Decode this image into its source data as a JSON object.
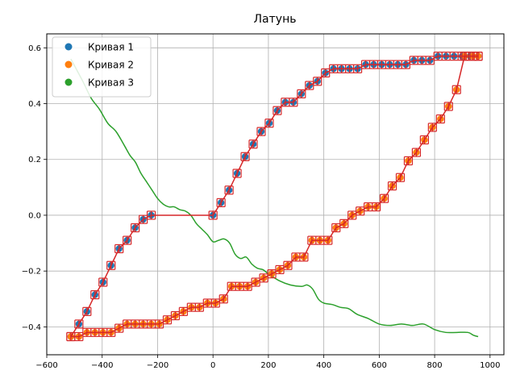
{
  "chart_data": {
    "type": "scatter",
    "title": "Латунь",
    "xlabel": "",
    "ylabel": "",
    "xlim": [
      -600,
      1050
    ],
    "ylim": [
      -0.5,
      0.65
    ],
    "xticks": [
      -600,
      -400,
      -200,
      0,
      200,
      400,
      600,
      800,
      1000
    ],
    "yticks": [
      -0.4,
      -0.2,
      0.0,
      0.2,
      0.4,
      0.6
    ],
    "xtick_labels": [
      "−600",
      "−400",
      "−200",
      "0",
      "200",
      "400",
      "600",
      "800",
      "1000"
    ],
    "ytick_labels": [
      "−0.4",
      "−0.2",
      "0.0",
      "0.2",
      "0.4",
      "0.6"
    ],
    "grid": true,
    "legend_position": "top-left",
    "series": [
      {
        "name": "Кривая 1",
        "color": "#1f77b4",
        "style": "markers",
        "x": [
          -513,
          -484,
          -455,
          -426,
          -397,
          -368,
          -339,
          -310,
          -281,
          -252,
          -223,
          0,
          29,
          58,
          87,
          116,
          145,
          174,
          203,
          232,
          261,
          290,
          319,
          348,
          377,
          406,
          435,
          464,
          493,
          522,
          551,
          580,
          609,
          638,
          667,
          696,
          725,
          754,
          783,
          812,
          841,
          870,
          899,
          928,
          957
        ],
        "y": [
          -0.435,
          -0.39,
          -0.345,
          -0.285,
          -0.24,
          -0.18,
          -0.12,
          -0.09,
          -0.045,
          -0.015,
          0.0,
          0.0,
          0.045,
          0.09,
          0.15,
          0.21,
          0.255,
          0.3,
          0.33,
          0.375,
          0.405,
          0.405,
          0.435,
          0.465,
          0.48,
          0.51,
          0.525,
          0.525,
          0.525,
          0.525,
          0.54,
          0.54,
          0.54,
          0.54,
          0.54,
          0.54,
          0.555,
          0.555,
          0.555,
          0.57,
          0.57,
          0.57,
          0.57,
          0.57,
          0.57
        ]
      },
      {
        "name": "Кривая 2",
        "color": "#ff7f0e",
        "style": "markers",
        "x": [
          -513,
          -484,
          -455,
          -426,
          -397,
          -368,
          -339,
          -310,
          -281,
          -252,
          -223,
          -194,
          -165,
          -136,
          -107,
          -78,
          -49,
          -20,
          9,
          38,
          67,
          96,
          125,
          154,
          183,
          212,
          241,
          270,
          299,
          328,
          357,
          386,
          415,
          444,
          473,
          502,
          531,
          560,
          589,
          618,
          647,
          676,
          705,
          734,
          763,
          792,
          821,
          850,
          879,
          908,
          937,
          957
        ],
        "y": [
          -0.435,
          -0.435,
          -0.42,
          -0.42,
          -0.42,
          -0.42,
          -0.405,
          -0.39,
          -0.39,
          -0.39,
          -0.39,
          -0.39,
          -0.375,
          -0.36,
          -0.345,
          -0.33,
          -0.33,
          -0.315,
          -0.315,
          -0.3,
          -0.255,
          -0.255,
          -0.255,
          -0.24,
          -0.225,
          -0.21,
          -0.195,
          -0.18,
          -0.15,
          -0.15,
          -0.09,
          -0.09,
          -0.09,
          -0.045,
          -0.03,
          0.0,
          0.015,
          0.03,
          0.03,
          0.06,
          0.105,
          0.135,
          0.195,
          0.225,
          0.27,
          0.315,
          0.345,
          0.39,
          0.45,
          0.57,
          0.57,
          0.57
        ]
      },
      {
        "name": "Кривая 3",
        "color": "#2ca02c",
        "style": "line",
        "x": [
          -513,
          -470,
          -440,
          -410,
          -380,
          -350,
          -320,
          -300,
          -280,
          -260,
          -240,
          -220,
          -200,
          -180,
          -160,
          -140,
          -120,
          -100,
          -80,
          -60,
          -40,
          -20,
          0,
          20,
          40,
          60,
          80,
          100,
          120,
          140,
          160,
          180,
          200,
          240,
          280,
          320,
          340,
          360,
          380,
          400,
          430,
          460,
          490,
          520,
          560,
          600,
          640,
          680,
          720,
          760,
          800,
          840,
          880,
          920,
          940,
          957
        ],
        "y": [
          0.56,
          0.48,
          0.42,
          0.38,
          0.33,
          0.3,
          0.25,
          0.215,
          0.19,
          0.15,
          0.12,
          0.09,
          0.06,
          0.04,
          0.03,
          0.03,
          0.02,
          0.015,
          0.0,
          -0.03,
          -0.05,
          -0.07,
          -0.095,
          -0.09,
          -0.085,
          -0.1,
          -0.14,
          -0.155,
          -0.15,
          -0.175,
          -0.19,
          -0.195,
          -0.21,
          -0.235,
          -0.25,
          -0.255,
          -0.25,
          -0.265,
          -0.3,
          -0.315,
          -0.32,
          -0.33,
          -0.335,
          -0.355,
          -0.37,
          -0.39,
          -0.395,
          -0.39,
          -0.395,
          -0.39,
          -0.41,
          -0.42,
          -0.42,
          -0.42,
          -0.43,
          -0.435
        ]
      },
      {
        "name": "",
        "color": "#d62728",
        "style": "line-with-markers",
        "x": [
          -513,
          -484,
          -455,
          -426,
          -397,
          -368,
          -339,
          -310,
          -281,
          -252,
          -223,
          -194,
          -165,
          -136,
          -107,
          -78,
          -49,
          -20,
          9,
          38,
          67,
          96,
          125,
          154,
          183,
          212,
          241,
          270,
          299,
          328,
          357,
          386,
          415,
          444,
          473,
          502,
          531,
          560,
          589,
          618,
          647,
          676,
          705,
          734,
          763,
          792,
          821,
          850,
          879,
          908,
          937,
          957
        ],
        "y": [
          -0.435,
          -0.435,
          -0.42,
          -0.42,
          -0.42,
          -0.42,
          -0.405,
          -0.39,
          -0.39,
          -0.39,
          -0.39,
          -0.39,
          -0.375,
          -0.36,
          -0.345,
          -0.33,
          -0.33,
          -0.315,
          -0.315,
          -0.3,
          -0.255,
          -0.255,
          -0.255,
          -0.24,
          -0.225,
          -0.21,
          -0.195,
          -0.18,
          -0.15,
          -0.15,
          -0.09,
          -0.09,
          -0.09,
          -0.045,
          -0.03,
          0.0,
          0.015,
          0.03,
          0.03,
          0.06,
          0.105,
          0.135,
          0.195,
          0.225,
          0.27,
          0.315,
          0.345,
          0.39,
          0.45,
          0.57,
          0.57,
          0.57
        ]
      },
      {
        "name": "",
        "color": "#d62728",
        "style": "line-with-markers",
        "x": [
          -513,
          -484,
          -455,
          -426,
          -397,
          -368,
          -339,
          -310,
          -281,
          -252,
          -223,
          0,
          29,
          58,
          87,
          116,
          145,
          174,
          203,
          232,
          261,
          290,
          319,
          348,
          377,
          406,
          435,
          464,
          493,
          522,
          551,
          580,
          609,
          638,
          667,
          696,
          725,
          754,
          783,
          812,
          841,
          870,
          899,
          928,
          957
        ],
        "y": [
          -0.435,
          -0.39,
          -0.345,
          -0.285,
          -0.24,
          -0.18,
          -0.12,
          -0.09,
          -0.045,
          -0.015,
          0.0,
          0.0,
          0.045,
          0.09,
          0.15,
          0.21,
          0.255,
          0.3,
          0.33,
          0.375,
          0.405,
          0.405,
          0.435,
          0.465,
          0.48,
          0.51,
          0.525,
          0.525,
          0.525,
          0.525,
          0.54,
          0.54,
          0.54,
          0.54,
          0.54,
          0.54,
          0.555,
          0.555,
          0.555,
          0.57,
          0.57,
          0.57,
          0.57,
          0.57,
          0.57
        ]
      }
    ]
  }
}
